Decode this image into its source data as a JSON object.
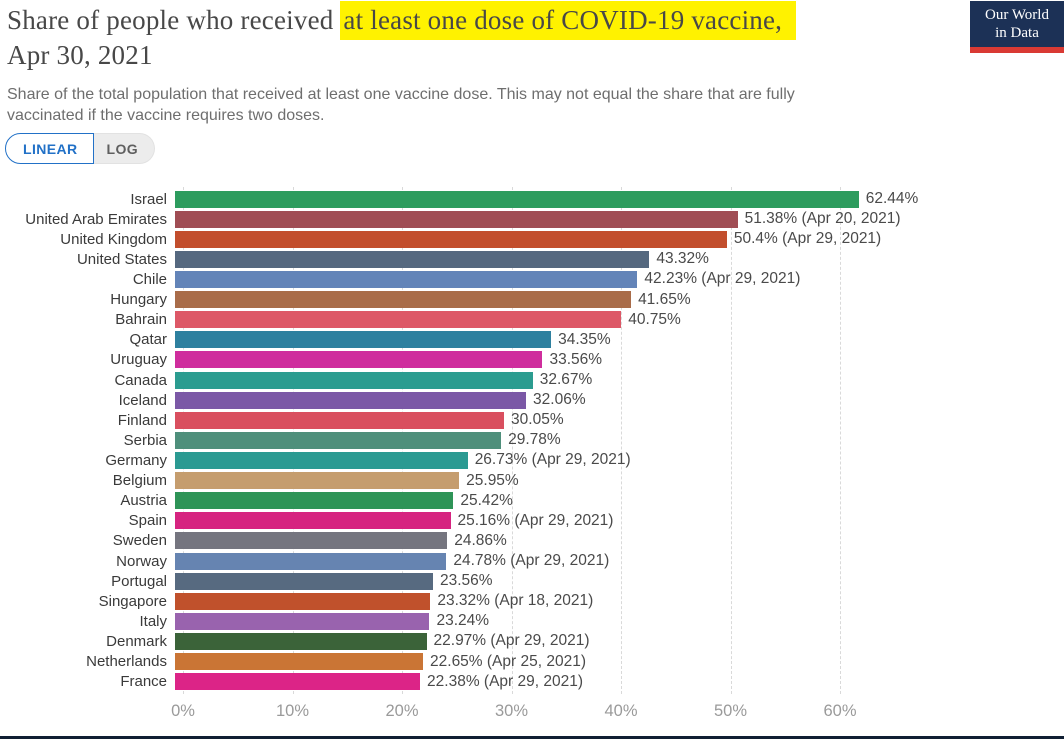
{
  "header": {
    "title_prefix": "Share of people who received ",
    "title_highlight": "at least one dose of COVID-19 vaccine,",
    "title_line2": "Apr 30, 2021",
    "subtitle_line1": "Share of the total population that received at least one vaccine dose. This may not equal the share that are fully",
    "subtitle_line2": "vaccinated if the vaccine requires two doses.",
    "logo": {
      "line1": "Our World",
      "line2": "in Data"
    }
  },
  "controls": {
    "linear_label": "LINEAR",
    "log_label": "LOG",
    "active": "LINEAR"
  },
  "theme": {
    "highlight": "#fff200",
    "logo_bg": "#1c3156",
    "logo_accent": "#d93a34",
    "active_blue": "#2271c7",
    "grid": "#d9d9d9"
  },
  "chart_data": {
    "type": "bar",
    "orientation": "horizontal",
    "unit": "%",
    "xlim": [
      0,
      66
    ],
    "grid": "dashed-vertical",
    "ticks": [
      {
        "label": "0%",
        "value": 0
      },
      {
        "label": "10%",
        "value": 10
      },
      {
        "label": "20%",
        "value": 20
      },
      {
        "label": "30%",
        "value": 30
      },
      {
        "label": "40%",
        "value": 40
      },
      {
        "label": "50%",
        "value": 50
      },
      {
        "label": "60%",
        "value": 60
      }
    ],
    "bars": [
      {
        "label": "Israel",
        "value": 62.44,
        "display": "62.44%",
        "color": "#2d9c5e"
      },
      {
        "label": "United Arab Emirates",
        "value": 51.38,
        "display": "51.38% (Apr 20, 2021)",
        "color": "#a04d54"
      },
      {
        "label": "United Kingdom",
        "value": 50.4,
        "display": "50.4% (Apr 29, 2021)",
        "color": "#c24e2d"
      },
      {
        "label": "United States",
        "value": 43.32,
        "display": "43.32%",
        "color": "#55687f"
      },
      {
        "label": "Chile",
        "value": 42.23,
        "display": "42.23% (Apr 29, 2021)",
        "color": "#6384b8"
      },
      {
        "label": "Hungary",
        "value": 41.65,
        "display": "41.65%",
        "color": "#a96c49"
      },
      {
        "label": "Bahrain",
        "value": 40.75,
        "display": "40.75%",
        "color": "#dd5867"
      },
      {
        "label": "Qatar",
        "value": 34.35,
        "display": "34.35%",
        "color": "#2e809f"
      },
      {
        "label": "Uruguay",
        "value": 33.56,
        "display": "33.56%",
        "color": "#cf2d9d"
      },
      {
        "label": "Canada",
        "value": 32.67,
        "display": "32.67%",
        "color": "#2b9c90"
      },
      {
        "label": "Iceland",
        "value": 32.06,
        "display": "32.06%",
        "color": "#7b58a6"
      },
      {
        "label": "Finland",
        "value": 30.05,
        "display": "30.05%",
        "color": "#d94f5f"
      },
      {
        "label": "Serbia",
        "value": 29.78,
        "display": "29.78%",
        "color": "#4e8f7b"
      },
      {
        "label": "Germany",
        "value": 26.73,
        "display": "26.73% (Apr 29, 2021)",
        "color": "#2b9a92"
      },
      {
        "label": "Belgium",
        "value": 25.95,
        "display": "25.95%",
        "color": "#c59d6e"
      },
      {
        "label": "Austria",
        "value": 25.42,
        "display": "25.42%",
        "color": "#2e9457"
      },
      {
        "label": "Spain",
        "value": 25.16,
        "display": "25.16% (Apr 29, 2021)",
        "color": "#d62480"
      },
      {
        "label": "Sweden",
        "value": 24.86,
        "display": "24.86%",
        "color": "#75757f"
      },
      {
        "label": "Norway",
        "value": 24.78,
        "display": "24.78% (Apr 29, 2021)",
        "color": "#6684b1"
      },
      {
        "label": "Portugal",
        "value": 23.56,
        "display": "23.56%",
        "color": "#576a80"
      },
      {
        "label": "Singapore",
        "value": 23.32,
        "display": "23.32% (Apr 18, 2021)",
        "color": "#c0512c"
      },
      {
        "label": "Italy",
        "value": 23.24,
        "display": "23.24%",
        "color": "#9963ae"
      },
      {
        "label": "Denmark",
        "value": 22.97,
        "display": "22.97% (Apr 29, 2021)",
        "color": "#3b6339"
      },
      {
        "label": "Netherlands",
        "value": 22.65,
        "display": "22.65% (Apr 25, 2021)",
        "color": "#ca7535"
      },
      {
        "label": "France",
        "value": 22.38,
        "display": "22.38% (Apr 29, 2021)",
        "color": "#dc2487"
      }
    ]
  }
}
